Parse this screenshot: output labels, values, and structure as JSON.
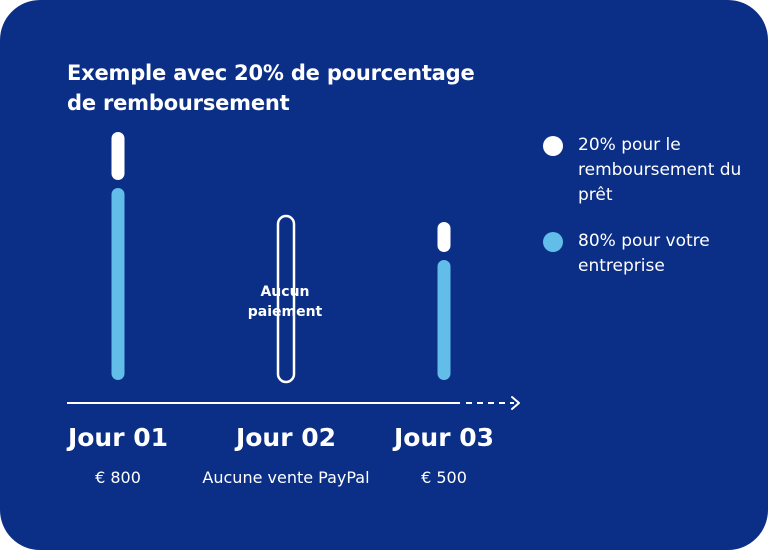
{
  "colors": {
    "background": "#0b2f86",
    "loan_share": "#ffffff",
    "business_share": "#62bde9",
    "axis": "#ffffff"
  },
  "chart_data": {
    "type": "bar",
    "stacked": true,
    "title": "Exemple avec 20% de pourcentage de remboursement",
    "categories": [
      "Jour 01",
      "Jour 02",
      "Jour 03"
    ],
    "category_notes": [
      "€ 800",
      "Aucune vente PayPal",
      "€ 500"
    ],
    "totals": [
      800,
      0,
      500
    ],
    "series": [
      {
        "name": "20% pour le remboursement du prêt",
        "color": "#ffffff",
        "values": [
          160,
          0,
          100
        ]
      },
      {
        "name": "80% pour votre entreprise",
        "color": "#62bde9",
        "values": [
          640,
          0,
          400
        ]
      }
    ],
    "bar_annotations": [
      null,
      "Aucun paiement",
      null
    ],
    "ylim": [
      0,
      800
    ],
    "grid": false,
    "legend_position": "right",
    "x_axis_arrow": true
  },
  "legend": {
    "items": [
      {
        "label": "20% pour le remboursement du prêt",
        "color": "#ffffff",
        "icon": "circle"
      },
      {
        "label": "80% pour votre entreprise",
        "color": "#62bde9",
        "icon": "circle"
      }
    ]
  }
}
